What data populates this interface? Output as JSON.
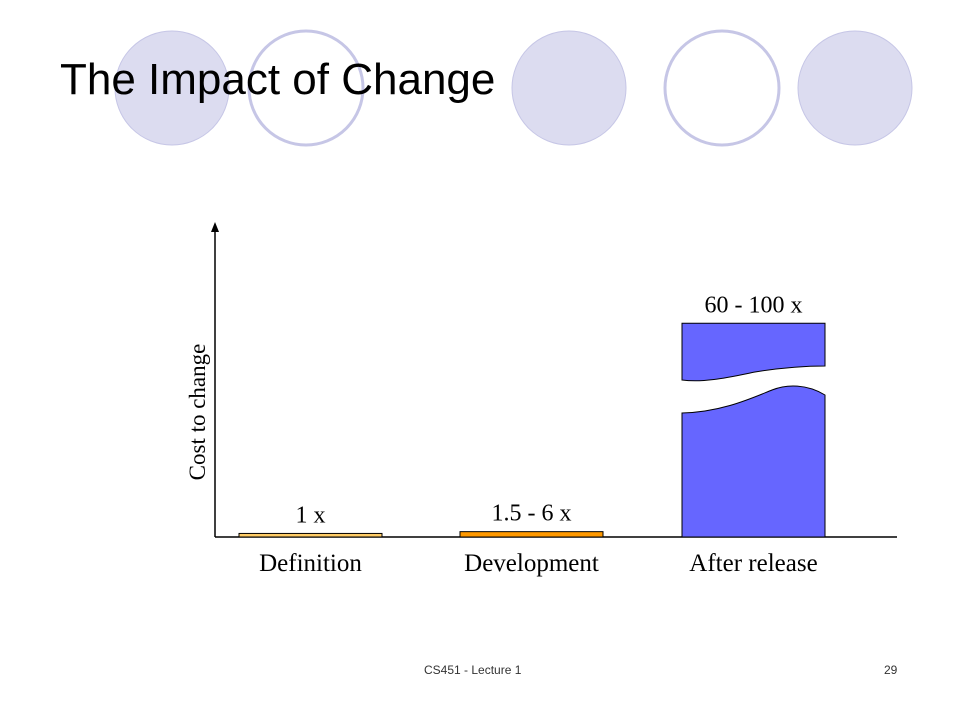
{
  "slide": {
    "title": "The Impact of Change",
    "footer": "CS451 - Lecture 1",
    "page_number": "29"
  },
  "theme": {
    "circle_fill": "#dcdcf0",
    "circle_stroke": "#c6c6e6",
    "axis_color": "#000000",
    "bar_outline": "#000000"
  },
  "chart_data": {
    "type": "bar",
    "title": "",
    "ylabel": "Cost to change",
    "xlabel": "",
    "categories": [
      "Definition",
      "Development",
      "After release"
    ],
    "values": [
      1,
      1.5,
      60
    ],
    "value_labels": [
      "1 x",
      "1.5 - 6 x",
      "60 - 100 x"
    ],
    "colors": [
      "#ffcc66",
      "#ff9900",
      "#6666ff"
    ],
    "axis_break_on": "After release",
    "ylim": [
      0,
      80
    ],
    "grid": false,
    "legend": "none"
  }
}
